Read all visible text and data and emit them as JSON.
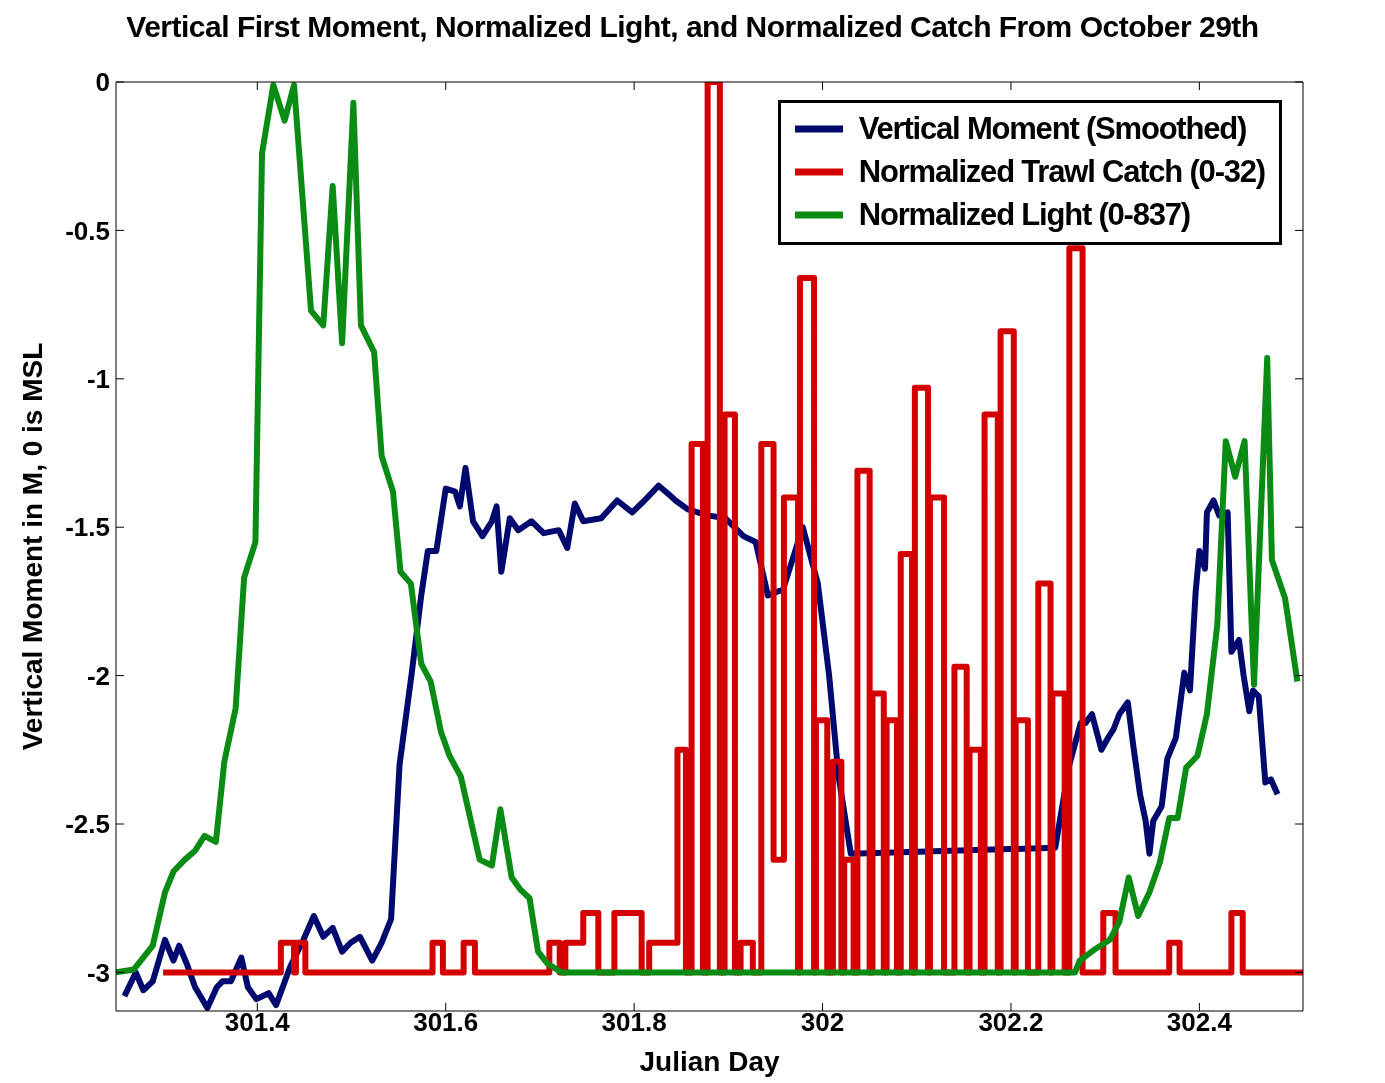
{
  "chart_data": {
    "type": "line",
    "title": "Vertical First Moment, Normalized Light, and Normalized Catch From October 29th",
    "xlabel": "Julian Day",
    "ylabel": "Vertical Moment in M, 0 is MSL",
    "xlim": [
      301.25,
      302.51
    ],
    "xticks": [
      301.4,
      301.6,
      301.8,
      302,
      302.2,
      302.4
    ],
    "ylim": [
      -3.13,
      0
    ],
    "yticks": [
      0,
      -0.5,
      -1,
      -1.5,
      -2,
      -2.5,
      -3
    ],
    "grid": false,
    "legend": "top right",
    "marker": "none",
    "line_style": "solid",
    "series": [
      {
        "name": "Vertical Moment (Smoothed)",
        "color": "#000a6e",
        "x": [
          301.259,
          301.271,
          301.279,
          301.289,
          301.302,
          301.311,
          301.317,
          301.325,
          301.334,
          301.347,
          301.357,
          301.363,
          301.372,
          301.383,
          301.39,
          301.399,
          301.412,
          301.42,
          301.435,
          301.449,
          301.46,
          301.47,
          301.48,
          301.49,
          301.499,
          301.509,
          301.522,
          301.532,
          301.542,
          301.551,
          301.564,
          301.574,
          301.581,
          301.59,
          301.6,
          301.61,
          301.615,
          301.621,
          301.629,
          301.639,
          301.649,
          301.654,
          301.659,
          301.668,
          301.677,
          301.691,
          301.704,
          301.72,
          301.729,
          301.737,
          301.746,
          301.765,
          301.782,
          301.798,
          301.811,
          301.826,
          301.837,
          301.844,
          301.857,
          301.878,
          301.897,
          301.916,
          301.929,
          301.942,
          301.958,
          301.979,
          301.995,
          302.007,
          302.017,
          302.03,
          302.247,
          302.262,
          302.274,
          302.279,
          302.286,
          302.296,
          302.303,
          302.309,
          302.315,
          302.324,
          302.33,
          302.337,
          302.343,
          302.347,
          302.351,
          302.36,
          302.366,
          302.375,
          302.384,
          302.39,
          302.396,
          302.4,
          302.406,
          302.408,
          302.415,
          302.421,
          302.43,
          302.434,
          302.442,
          302.447,
          302.453,
          302.457,
          302.463,
          302.47,
          302.476,
          302.483
        ],
        "values": [
          -3.08,
          -3.0,
          -3.06,
          -3.03,
          -2.89,
          -2.96,
          -2.91,
          -2.97,
          -3.05,
          -3.12,
          -3.05,
          -3.03,
          -3.03,
          -2.95,
          -3.05,
          -3.09,
          -3.07,
          -3.11,
          -2.98,
          -2.89,
          -2.81,
          -2.88,
          -2.85,
          -2.93,
          -2.9,
          -2.88,
          -2.96,
          -2.9,
          -2.82,
          -2.3,
          -1.99,
          -1.73,
          -1.58,
          -1.58,
          -1.37,
          -1.38,
          -1.43,
          -1.3,
          -1.48,
          -1.53,
          -1.48,
          -1.43,
          -1.65,
          -1.47,
          -1.51,
          -1.48,
          -1.52,
          -1.51,
          -1.57,
          -1.42,
          -1.48,
          -1.47,
          -1.41,
          -1.45,
          -1.41,
          -1.36,
          -1.39,
          -1.41,
          -1.44,
          -1.46,
          -1.47,
          -1.53,
          -1.55,
          -1.73,
          -1.71,
          -1.5,
          -1.69,
          -2.0,
          -2.34,
          -2.6,
          -2.58,
          -2.3,
          -2.16,
          -2.16,
          -2.13,
          -2.25,
          -2.21,
          -2.18,
          -2.13,
          -2.09,
          -2.24,
          -2.4,
          -2.49,
          -2.6,
          -2.49,
          -2.44,
          -2.28,
          -2.21,
          -1.99,
          -2.05,
          -1.72,
          -1.58,
          -1.64,
          -1.45,
          -1.41,
          -1.46,
          -1.45,
          -1.92,
          -1.88,
          -2.0,
          -2.12,
          -2.05,
          -2.07,
          -2.36,
          -2.35,
          -2.4
        ]
      },
      {
        "name": "Normalized Trawl Catch (0-32)",
        "type": "step",
        "color": "#d40000",
        "x": [
          301.3,
          301.425,
          301.439,
          301.441,
          301.451,
          301.586,
          301.597,
          301.619,
          301.631,
          301.71,
          301.721,
          301.727,
          301.746,
          301.762,
          301.779,
          301.808,
          301.816,
          301.846,
          301.855,
          301.861,
          301.873,
          301.878,
          301.891,
          301.896,
          301.907,
          301.913,
          301.926,
          301.935,
          301.948,
          301.959,
          301.974,
          301.976,
          301.991,
          301.993,
          302.005,
          302.011,
          302.02,
          302.023,
          302.033,
          302.037,
          302.05,
          302.053,
          302.065,
          302.068,
          302.079,
          302.083,
          302.095,
          302.098,
          302.112,
          302.114,
          302.129,
          302.14,
          302.153,
          302.156,
          302.168,
          302.172,
          302.186,
          302.189,
          302.203,
          302.205,
          302.218,
          302.229,
          302.242,
          302.244,
          302.257,
          302.262,
          302.276,
          302.298,
          302.311,
          302.368,
          302.379,
          302.434,
          302.446,
          302.51
        ],
        "values": [
          -3,
          -2.9,
          -3,
          -2.9,
          -3,
          -2.9,
          -3,
          -2.9,
          -3,
          -2.9,
          -3,
          -2.9,
          -2.8,
          -3,
          -2.8,
          -3,
          -2.9,
          -2.25,
          -3,
          -1.22,
          -3,
          0,
          -3,
          -1.12,
          -3,
          -2.9,
          -3,
          -1.22,
          -2.62,
          -1.4,
          -3,
          -0.66,
          -3,
          -2.15,
          -3,
          -2.29,
          -3,
          -2.62,
          -3,
          -1.31,
          -3,
          -2.06,
          -3,
          -2.15,
          -3,
          -1.59,
          -3,
          -1.03,
          -3,
          -1.4,
          -3,
          -1.97,
          -3,
          -2.25,
          -3,
          -1.12,
          -3,
          -0.84,
          -3,
          -2.15,
          -3,
          -1.69,
          -3,
          -2.06,
          -3,
          -0.56,
          -3,
          -2.8,
          -3,
          -2.9,
          -3,
          -2.8,
          -3,
          -3
        ]
      },
      {
        "name": "Normalized Light (0-837)",
        "color": "#0a8c14",
        "x": [
          301.25,
          301.269,
          301.289,
          301.302,
          301.311,
          301.323,
          301.334,
          301.344,
          301.356,
          301.365,
          301.377,
          301.386,
          301.398,
          301.405,
          301.417,
          301.429,
          301.439,
          301.457,
          301.47,
          301.48,
          301.49,
          301.502,
          301.51,
          301.524,
          301.532,
          301.544,
          301.552,
          301.563,
          301.574,
          301.584,
          301.595,
          301.604,
          301.616,
          301.636,
          301.649,
          301.658,
          301.67,
          301.679,
          301.689,
          301.698,
          301.708,
          301.723,
          302.268,
          302.273,
          302.29,
          302.305,
          302.315,
          302.325,
          302.335,
          302.347,
          302.358,
          302.368,
          302.377,
          302.386,
          302.398,
          302.408,
          302.419,
          302.428,
          302.438,
          302.448,
          302.458,
          302.472,
          302.477,
          302.491,
          302.504
        ],
        "values": [
          -3.0,
          -2.99,
          -2.91,
          -2.73,
          -2.66,
          -2.62,
          -2.59,
          -2.54,
          -2.56,
          -2.29,
          -2.11,
          -1.67,
          -1.55,
          -0.24,
          -0.01,
          -0.13,
          -0.01,
          -0.77,
          -0.82,
          -0.35,
          -0.88,
          -0.07,
          -0.82,
          -0.91,
          -1.26,
          -1.38,
          -1.65,
          -1.69,
          -1.96,
          -2.02,
          -2.19,
          -2.27,
          -2.34,
          -2.62,
          -2.64,
          -2.45,
          -2.68,
          -2.72,
          -2.75,
          -2.93,
          -2.97,
          -3.0,
          -3.0,
          -2.96,
          -2.92,
          -2.89,
          -2.83,
          -2.68,
          -2.81,
          -2.73,
          -2.63,
          -2.48,
          -2.48,
          -2.31,
          -2.27,
          -2.13,
          -1.83,
          -1.21,
          -1.33,
          -1.21,
          -2.03,
          -0.93,
          -1.61,
          -1.74,
          -2.02
        ]
      }
    ]
  }
}
